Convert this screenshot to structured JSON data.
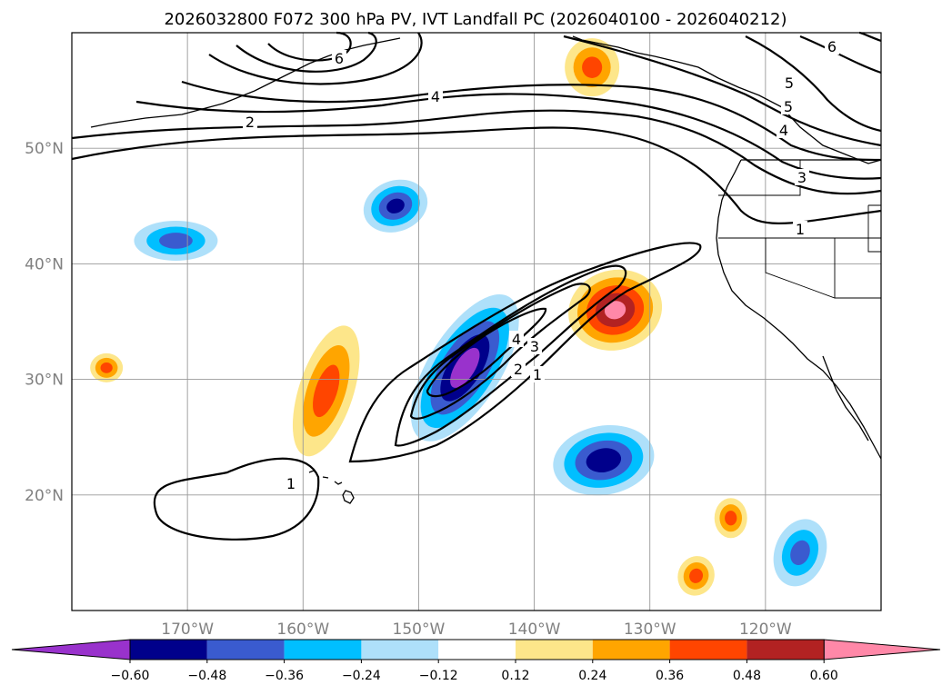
{
  "chart_data": {
    "type": "heatmap",
    "title": "2026032800 F072 300 hPa PV, IVT Landfall PC (2026040100 - 2026040212)",
    "x_ticks": [
      "170°W",
      "160°W",
      "150°W",
      "140°W",
      "130°W",
      "120°W"
    ],
    "y_ticks": [
      "50°N",
      "40°N",
      "30°N",
      "20°N"
    ],
    "x_tick_values_deg": [
      -170,
      -160,
      -150,
      -140,
      -130,
      -120
    ],
    "y_tick_values_deg": [
      50,
      40,
      30,
      20
    ],
    "lon_range": [
      -180,
      -110
    ],
    "lat_range": [
      10,
      60
    ],
    "colorbar": {
      "tick_labels": [
        "−0.60",
        "−0.48",
        "−0.36",
        "−0.24",
        "−0.12",
        "0.12",
        "0.24",
        "0.36",
        "0.48",
        "0.60"
      ],
      "levels": [
        -0.6,
        -0.48,
        -0.36,
        -0.24,
        -0.12,
        0.12,
        0.24,
        0.36,
        0.48,
        0.6
      ],
      "colors": [
        "#9932cc",
        "#00008b",
        "#3a5bcf",
        "#00bfff",
        "#aee0fa",
        "#ffffff",
        "#fde68a",
        "#ffa500",
        "#ff4500",
        "#b22222",
        "#ff88a8"
      ],
      "extend": "both"
    },
    "contour_field": "300 hPa PV (PVU)",
    "contour_labels": [
      "6",
      "5",
      "4",
      "2",
      "6",
      "5",
      "4",
      "3",
      "1",
      "4",
      "3",
      "2",
      "1",
      "1"
    ],
    "anomalies": [
      {
        "sign": "negative",
        "center_lon": -146,
        "center_lat": 31,
        "peak": -0.66
      },
      {
        "sign": "negative",
        "center_lon": -134,
        "center_lat": 23,
        "peak": -0.55
      },
      {
        "sign": "negative",
        "center_lon": -152,
        "center_lat": 45,
        "peak": -0.5
      },
      {
        "sign": "negative",
        "center_lon": -171,
        "center_lat": 42,
        "peak": -0.4
      },
      {
        "sign": "negative",
        "center_lon": -117,
        "center_lat": 15,
        "peak": -0.38
      },
      {
        "sign": "positive",
        "center_lon": -133,
        "center_lat": 36,
        "peak": 0.62
      },
      {
        "sign": "positive",
        "center_lon": -158,
        "center_lat": 29,
        "peak": 0.4
      },
      {
        "sign": "positive",
        "center_lon": -135,
        "center_lat": 57,
        "peak": 0.38
      },
      {
        "sign": "positive",
        "center_lon": -177,
        "center_lat": 31,
        "peak": 0.38
      },
      {
        "sign": "positive",
        "center_lon": -123,
        "center_lat": 18,
        "peak": 0.38
      },
      {
        "sign": "positive",
        "center_lon": -126,
        "center_lat": 13,
        "peak": 0.38
      }
    ]
  }
}
